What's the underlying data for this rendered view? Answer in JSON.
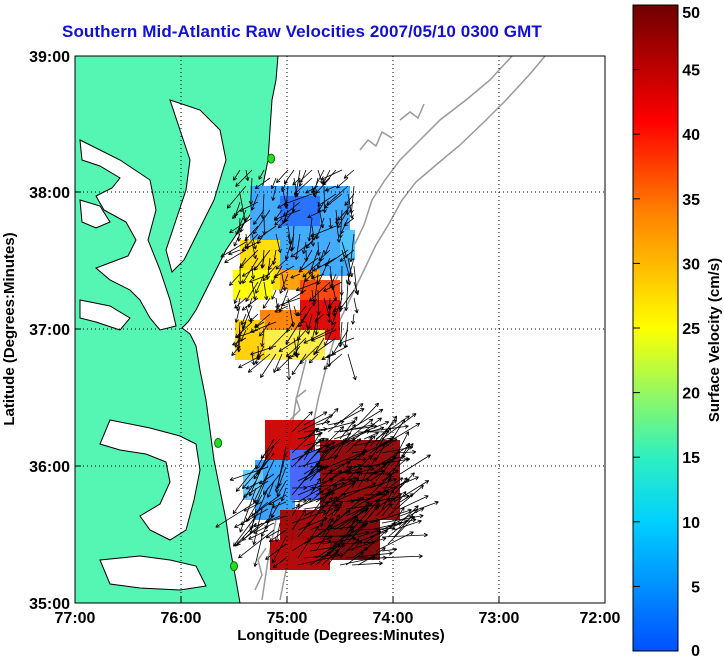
{
  "title": "Southern Mid-Atlantic Raw Velocities 2007/05/10 0300 GMT",
  "x_axis": {
    "label": "Longitude (Degrees:Minutes)",
    "ticks": [
      "77:00",
      "76:00",
      "75:00",
      "74:00",
      "73:00",
      "72:00"
    ]
  },
  "y_axis": {
    "label": "Latitude (Degrees:Minutes)",
    "ticks": [
      "39:00",
      "38:00",
      "37:00",
      "36:00",
      "35:00"
    ]
  },
  "colorbar": {
    "label": "Surface Velocity (cm/s)",
    "min": 0,
    "max": 50,
    "ticks": [
      "0",
      "5",
      "10",
      "15",
      "20",
      "25",
      "30",
      "35",
      "40",
      "45",
      "50"
    ],
    "colors": [
      "#0050ff",
      "#00d8ff",
      "#2ef0c0",
      "#ffff00",
      "#ff8000",
      "#ff0000",
      "#6e0000"
    ]
  },
  "colors": {
    "land": "#55f5b4",
    "coastline": "#000000",
    "bathymetry": "#9a9a9a",
    "site_marker": "#22dd22"
  },
  "extent": {
    "lon": [
      -77,
      -72
    ],
    "lat": [
      35,
      39
    ]
  },
  "sites": [
    {
      "lon": -75.15,
      "lat": 38.25
    },
    {
      "lon": -75.65,
      "lat": 36.17
    },
    {
      "lon": -75.5,
      "lat": 35.27
    }
  ],
  "velocity_regions": [
    {
      "region": "north-cluster",
      "speed_range_cm_s": [
        5,
        35
      ]
    },
    {
      "region": "south-cluster",
      "speed_range_cm_s": [
        5,
        50
      ]
    }
  ]
}
